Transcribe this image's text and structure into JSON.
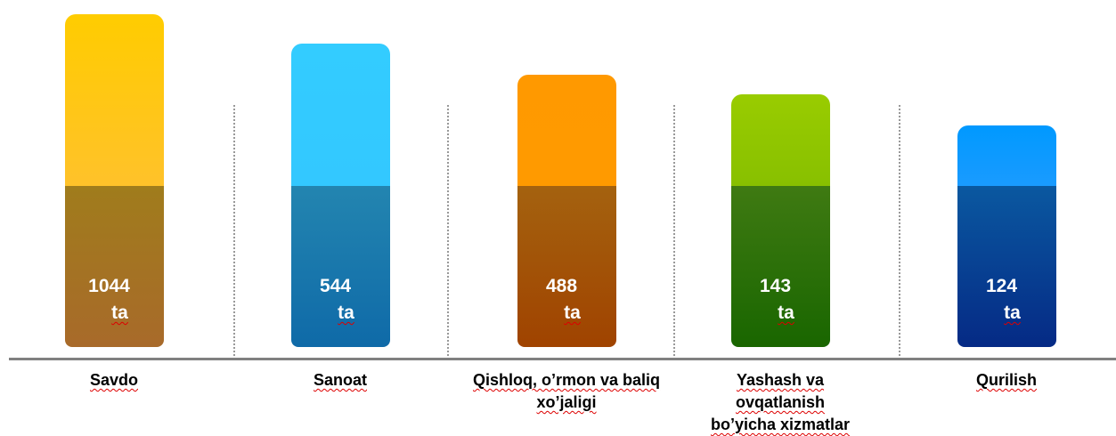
{
  "items": [
    {
      "value": "1044",
      "unit": "ta",
      "label": "Savdo"
    },
    {
      "value": "544",
      "unit": "ta",
      "label": "Sanoat"
    },
    {
      "value": "488",
      "unit": "ta",
      "label": "Qishloq, o’rmon va baliq xo’jaligi"
    },
    {
      "value": "143",
      "unit": "ta",
      "label": "Yashash va ovqatlanish bo’yicha xizmatlar"
    },
    {
      "value": "124",
      "unit": "ta",
      "label": "Qurilish"
    }
  ]
}
